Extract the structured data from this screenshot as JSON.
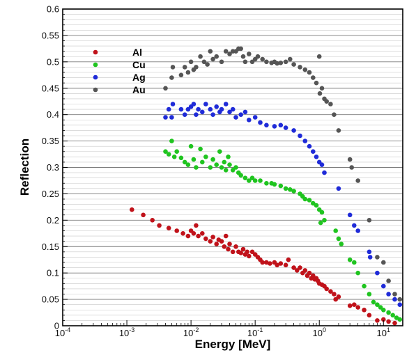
{
  "chart_data": {
    "type": "scatter",
    "xlabel": "Energy [MeV]",
    "ylabel": "Reflection",
    "xscale": "log",
    "xlim": [
      0.0001,
      20
    ],
    "ylim": [
      0,
      0.6
    ],
    "grid": "horizontal",
    "legend_position": "top-left",
    "x_ticks": [
      {
        "value": 0.0001,
        "base": "10",
        "exp": "-4"
      },
      {
        "value": 0.001,
        "base": "10",
        "exp": "-3"
      },
      {
        "value": 0.01,
        "base": "10",
        "exp": "-2"
      },
      {
        "value": 0.1,
        "base": "10",
        "exp": "-1"
      },
      {
        "value": 1,
        "base": "10",
        "exp": "0"
      },
      {
        "value": 10,
        "base": "10",
        "exp": "1"
      }
    ],
    "y_ticks": [
      {
        "value": 0,
        "label": "0"
      },
      {
        "value": 0.05,
        "label": "0.05"
      },
      {
        "value": 0.1,
        "label": "0.1"
      },
      {
        "value": 0.15,
        "label": "0.15"
      },
      {
        "value": 0.2,
        "label": "0.2"
      },
      {
        "value": 0.25,
        "label": "0.25"
      },
      {
        "value": 0.3,
        "label": "0.3"
      },
      {
        "value": 0.35,
        "label": "0.35"
      },
      {
        "value": 0.4,
        "label": "0.4"
      },
      {
        "value": 0.45,
        "label": "0.45"
      },
      {
        "value": 0.5,
        "label": "0.5"
      },
      {
        "value": 0.55,
        "label": "0.55"
      },
      {
        "value": 0.6,
        "label": "0.6"
      }
    ],
    "series": [
      {
        "name": "Al",
        "color": "#c0121a",
        "points": [
          [
            0.0012,
            0.22
          ],
          [
            0.0018,
            0.21
          ],
          [
            0.0025,
            0.2
          ],
          [
            0.0032,
            0.19
          ],
          [
            0.0045,
            0.185
          ],
          [
            0.006,
            0.18
          ],
          [
            0.0075,
            0.175
          ],
          [
            0.009,
            0.17
          ],
          [
            0.01,
            0.18
          ],
          [
            0.011,
            0.175
          ],
          [
            0.012,
            0.19
          ],
          [
            0.013,
            0.17
          ],
          [
            0.015,
            0.175
          ],
          [
            0.017,
            0.165
          ],
          [
            0.02,
            0.16
          ],
          [
            0.022,
            0.168
          ],
          [
            0.025,
            0.155
          ],
          [
            0.027,
            0.163
          ],
          [
            0.03,
            0.16
          ],
          [
            0.033,
            0.15
          ],
          [
            0.035,
            0.17
          ],
          [
            0.038,
            0.145
          ],
          [
            0.04,
            0.155
          ],
          [
            0.045,
            0.14
          ],
          [
            0.05,
            0.15
          ],
          [
            0.055,
            0.14
          ],
          [
            0.06,
            0.138
          ],
          [
            0.065,
            0.145
          ],
          [
            0.07,
            0.135
          ],
          [
            0.075,
            0.14
          ],
          [
            0.08,
            0.132
          ],
          [
            0.09,
            0.14
          ],
          [
            0.1,
            0.135
          ],
          [
            0.11,
            0.13
          ],
          [
            0.12,
            0.125
          ],
          [
            0.13,
            0.12
          ],
          [
            0.15,
            0.12
          ],
          [
            0.17,
            0.118
          ],
          [
            0.2,
            0.12
          ],
          [
            0.22,
            0.115
          ],
          [
            0.25,
            0.118
          ],
          [
            0.3,
            0.115
          ],
          [
            0.33,
            0.125
          ],
          [
            0.4,
            0.11
          ],
          [
            0.45,
            0.105
          ],
          [
            0.5,
            0.11
          ],
          [
            0.55,
            0.1
          ],
          [
            0.6,
            0.105
          ],
          [
            0.65,
            0.095
          ],
          [
            0.7,
            0.1
          ],
          [
            0.75,
            0.09
          ],
          [
            0.8,
            0.095
          ],
          [
            0.85,
            0.088
          ],
          [
            0.9,
            0.09
          ],
          [
            0.95,
            0.085
          ],
          [
            1.0,
            0.08
          ],
          [
            1.1,
            0.078
          ],
          [
            1.2,
            0.075
          ],
          [
            1.3,
            0.07
          ],
          [
            1.5,
            0.065
          ],
          [
            1.7,
            0.06
          ],
          [
            1.8,
            0.05
          ],
          [
            2.0,
            0.055
          ],
          [
            3.0,
            0.038
          ],
          [
            3.5,
            0.04
          ],
          [
            4.0,
            0.035
          ],
          [
            5.0,
            0.03
          ],
          [
            6.0,
            0.02
          ],
          [
            8.0,
            0.01
          ],
          [
            10.0,
            0.012
          ],
          [
            12.0,
            0.008
          ],
          [
            15.0,
            0.005
          ]
        ]
      },
      {
        "name": "Cu",
        "color": "#1fc41f",
        "points": [
          [
            0.004,
            0.33
          ],
          [
            0.0045,
            0.325
          ],
          [
            0.005,
            0.35
          ],
          [
            0.0055,
            0.32
          ],
          [
            0.006,
            0.33
          ],
          [
            0.007,
            0.318
          ],
          [
            0.008,
            0.31
          ],
          [
            0.009,
            0.305
          ],
          [
            0.01,
            0.34
          ],
          [
            0.011,
            0.315
          ],
          [
            0.012,
            0.3
          ],
          [
            0.014,
            0.335
          ],
          [
            0.015,
            0.31
          ],
          [
            0.017,
            0.32
          ],
          [
            0.02,
            0.3
          ],
          [
            0.022,
            0.315
          ],
          [
            0.025,
            0.305
          ],
          [
            0.028,
            0.33
          ],
          [
            0.03,
            0.3
          ],
          [
            0.033,
            0.31
          ],
          [
            0.035,
            0.295
          ],
          [
            0.038,
            0.32
          ],
          [
            0.04,
            0.305
          ],
          [
            0.045,
            0.295
          ],
          [
            0.05,
            0.3
          ],
          [
            0.055,
            0.29
          ],
          [
            0.06,
            0.285
          ],
          [
            0.07,
            0.28
          ],
          [
            0.08,
            0.275
          ],
          [
            0.09,
            0.28
          ],
          [
            0.1,
            0.275
          ],
          [
            0.12,
            0.275
          ],
          [
            0.15,
            0.27
          ],
          [
            0.18,
            0.27
          ],
          [
            0.2,
            0.268
          ],
          [
            0.25,
            0.265
          ],
          [
            0.3,
            0.26
          ],
          [
            0.35,
            0.258
          ],
          [
            0.4,
            0.255
          ],
          [
            0.5,
            0.25
          ],
          [
            0.55,
            0.245
          ],
          [
            0.6,
            0.24
          ],
          [
            0.7,
            0.238
          ],
          [
            0.8,
            0.232
          ],
          [
            0.9,
            0.228
          ],
          [
            1.0,
            0.22
          ],
          [
            1.1,
            0.215
          ],
          [
            1.2,
            0.2
          ],
          [
            1.05,
            0.195
          ],
          [
            1.8,
            0.18
          ],
          [
            2.0,
            0.165
          ],
          [
            2.2,
            0.155
          ],
          [
            3.0,
            0.125
          ],
          [
            3.5,
            0.12
          ],
          [
            4.0,
            0.1
          ],
          [
            5.0,
            0.075
          ],
          [
            6.0,
            0.06
          ],
          [
            7.0,
            0.045
          ],
          [
            8.0,
            0.04
          ],
          [
            9.0,
            0.035
          ],
          [
            10.0,
            0.03
          ],
          [
            12.0,
            0.025
          ],
          [
            14.0,
            0.02
          ],
          [
            16.0,
            0.015
          ],
          [
            18.0,
            0.012
          ]
        ]
      },
      {
        "name": "Ag",
        "color": "#1f2bd8",
        "points": [
          [
            0.004,
            0.395
          ],
          [
            0.0045,
            0.41
          ],
          [
            0.005,
            0.395
          ],
          [
            0.0052,
            0.42
          ],
          [
            0.007,
            0.41
          ],
          [
            0.008,
            0.4
          ],
          [
            0.009,
            0.41
          ],
          [
            0.01,
            0.415
          ],
          [
            0.011,
            0.42
          ],
          [
            0.012,
            0.4
          ],
          [
            0.013,
            0.41
          ],
          [
            0.015,
            0.405
          ],
          [
            0.017,
            0.42
          ],
          [
            0.02,
            0.41
          ],
          [
            0.022,
            0.4
          ],
          [
            0.025,
            0.415
          ],
          [
            0.028,
            0.405
          ],
          [
            0.03,
            0.41
          ],
          [
            0.035,
            0.42
          ],
          [
            0.04,
            0.405
          ],
          [
            0.045,
            0.41
          ],
          [
            0.05,
            0.395
          ],
          [
            0.06,
            0.4
          ],
          [
            0.07,
            0.405
          ],
          [
            0.08,
            0.39
          ],
          [
            0.1,
            0.395
          ],
          [
            0.12,
            0.385
          ],
          [
            0.15,
            0.38
          ],
          [
            0.2,
            0.378
          ],
          [
            0.25,
            0.38
          ],
          [
            0.3,
            0.375
          ],
          [
            0.4,
            0.37
          ],
          [
            0.5,
            0.36
          ],
          [
            0.6,
            0.35
          ],
          [
            0.7,
            0.34
          ],
          [
            0.8,
            0.33
          ],
          [
            0.9,
            0.32
          ],
          [
            1.0,
            0.31
          ],
          [
            1.1,
            0.305
          ],
          [
            1.2,
            0.29
          ],
          [
            2.0,
            0.26
          ],
          [
            3.0,
            0.21
          ],
          [
            3.5,
            0.19
          ],
          [
            4.0,
            0.18
          ],
          [
            6.0,
            0.14
          ],
          [
            6.2,
            0.13
          ],
          [
            8.0,
            0.1
          ],
          [
            10.0,
            0.075
          ],
          [
            12.0,
            0.06
          ],
          [
            15.0,
            0.05
          ],
          [
            18.0,
            0.04
          ]
        ]
      },
      {
        "name": "Au",
        "color": "#555555",
        "points": [
          [
            0.004,
            0.45
          ],
          [
            0.005,
            0.47
          ],
          [
            0.0052,
            0.49
          ],
          [
            0.007,
            0.475
          ],
          [
            0.008,
            0.49
          ],
          [
            0.009,
            0.48
          ],
          [
            0.01,
            0.5
          ],
          [
            0.011,
            0.485
          ],
          [
            0.012,
            0.49
          ],
          [
            0.014,
            0.51
          ],
          [
            0.016,
            0.5
          ],
          [
            0.018,
            0.495
          ],
          [
            0.02,
            0.52
          ],
          [
            0.022,
            0.505
          ],
          [
            0.025,
            0.51
          ],
          [
            0.03,
            0.5
          ],
          [
            0.035,
            0.52
          ],
          [
            0.04,
            0.515
          ],
          [
            0.045,
            0.52
          ],
          [
            0.05,
            0.52
          ],
          [
            0.055,
            0.525
          ],
          [
            0.06,
            0.525
          ],
          [
            0.065,
            0.51
          ],
          [
            0.07,
            0.5
          ],
          [
            0.08,
            0.515
          ],
          [
            0.09,
            0.5
          ],
          [
            0.1,
            0.505
          ],
          [
            0.11,
            0.51
          ],
          [
            0.13,
            0.505
          ],
          [
            0.15,
            0.5
          ],
          [
            0.18,
            0.498
          ],
          [
            0.2,
            0.5
          ],
          [
            0.22,
            0.497
          ],
          [
            0.25,
            0.498
          ],
          [
            0.3,
            0.5
          ],
          [
            0.35,
            0.505
          ],
          [
            0.4,
            0.495
          ],
          [
            0.5,
            0.49
          ],
          [
            0.6,
            0.485
          ],
          [
            0.7,
            0.48
          ],
          [
            0.8,
            0.47
          ],
          [
            0.9,
            0.46
          ],
          [
            1.0,
            0.51
          ],
          [
            1.02,
            0.44
          ],
          [
            1.1,
            0.45
          ],
          [
            1.2,
            0.43
          ],
          [
            1.3,
            0.425
          ],
          [
            1.5,
            0.42
          ],
          [
            1.7,
            0.4
          ],
          [
            2.0,
            0.37
          ],
          [
            3.0,
            0.315
          ],
          [
            3.2,
            0.3
          ],
          [
            4.0,
            0.275
          ],
          [
            6.0,
            0.2
          ],
          [
            8.0,
            0.13
          ],
          [
            10.0,
            0.12
          ],
          [
            12.0,
            0.085
          ],
          [
            15.0,
            0.06
          ],
          [
            18.0,
            0.05
          ]
        ]
      }
    ]
  }
}
